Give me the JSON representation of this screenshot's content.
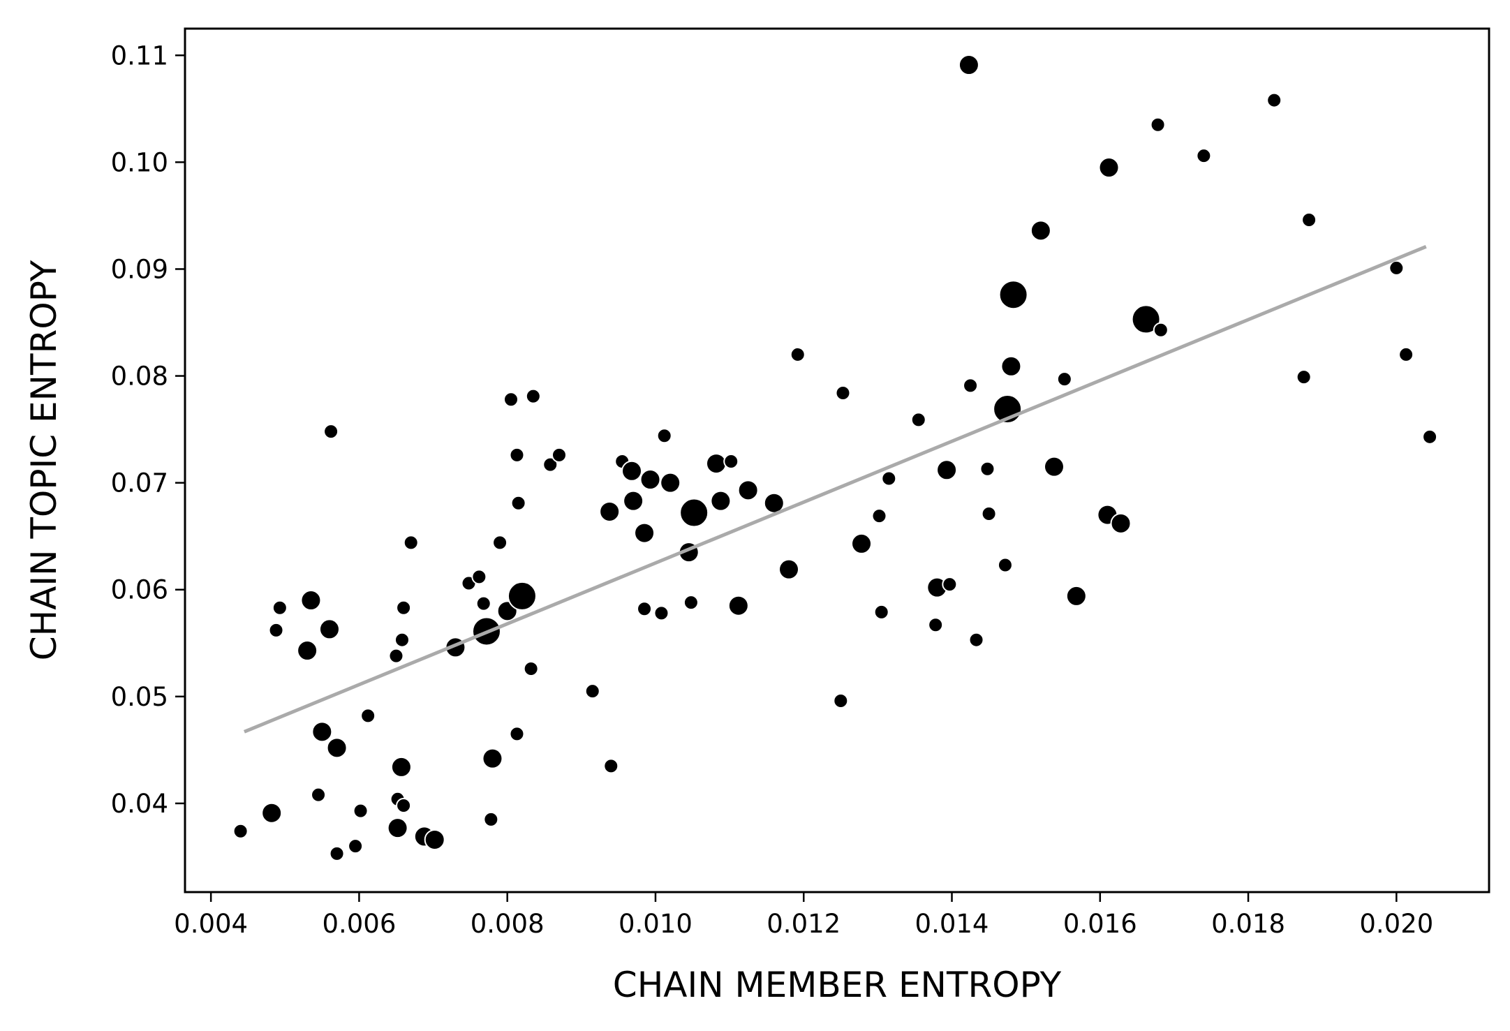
{
  "chart_data": {
    "type": "scatter",
    "xlabel": "CHAIN MEMBER ENTROPY",
    "ylabel": "CHAIN TOPIC ENTROPY",
    "xlim": [
      0.00365,
      0.02125
    ],
    "ylim": [
      0.0317,
      0.1125
    ],
    "x_ticks": [
      "0.004",
      "0.006",
      "0.008",
      "0.010",
      "0.012",
      "0.014",
      "0.016",
      "0.018",
      "0.020"
    ],
    "y_ticks": [
      "0.04",
      "0.05",
      "0.06",
      "0.07",
      "0.08",
      "0.09",
      "0.10",
      "0.11"
    ],
    "grid": false,
    "marker_color": "#000000",
    "trend_line": {
      "x": [
        0.00445,
        0.0204
      ],
      "y": [
        0.0467,
        0.0921
      ],
      "color": "#aaaaaa"
    },
    "points": [
      [
        0.0044,
        0.0374,
        1
      ],
      [
        0.00482,
        0.0391,
        2
      ],
      [
        0.00488,
        0.0562,
        1
      ],
      [
        0.00493,
        0.0583,
        1
      ],
      [
        0.0053,
        0.0543,
        2
      ],
      [
        0.00535,
        0.059,
        2
      ],
      [
        0.00545,
        0.0408,
        1
      ],
      [
        0.0055,
        0.0467,
        2
      ],
      [
        0.0056,
        0.0563,
        2
      ],
      [
        0.00562,
        0.0748,
        1
      ],
      [
        0.0057,
        0.0452,
        2
      ],
      [
        0.0057,
        0.0353,
        1
      ],
      [
        0.00595,
        0.036,
        1
      ],
      [
        0.00602,
        0.0393,
        1
      ],
      [
        0.00612,
        0.0482,
        1
      ],
      [
        0.0065,
        0.0538,
        1
      ],
      [
        0.00652,
        0.0404,
        1
      ],
      [
        0.00652,
        0.0377,
        2
      ],
      [
        0.00657,
        0.0434,
        2
      ],
      [
        0.00658,
        0.0553,
        1
      ],
      [
        0.0066,
        0.0583,
        1
      ],
      [
        0.0066,
        0.0398,
        1
      ],
      [
        0.0067,
        0.0644,
        1
      ],
      [
        0.00688,
        0.0369,
        2
      ],
      [
        0.00702,
        0.0366,
        2
      ],
      [
        0.0073,
        0.0546,
        2
      ],
      [
        0.00748,
        0.0606,
        1
      ],
      [
        0.00762,
        0.0612,
        1
      ],
      [
        0.00768,
        0.0587,
        1
      ],
      [
        0.00772,
        0.0561,
        3
      ],
      [
        0.00778,
        0.0385,
        1
      ],
      [
        0.0078,
        0.0442,
        2
      ],
      [
        0.0079,
        0.0644,
        1
      ],
      [
        0.008,
        0.058,
        2
      ],
      [
        0.00805,
        0.0778,
        1
      ],
      [
        0.00813,
        0.0465,
        1
      ],
      [
        0.00813,
        0.0726,
        1
      ],
      [
        0.00815,
        0.0681,
        1
      ],
      [
        0.0082,
        0.0594,
        3
      ],
      [
        0.00832,
        0.0526,
        1
      ],
      [
        0.00835,
        0.0781,
        1
      ],
      [
        0.00858,
        0.0717,
        1
      ],
      [
        0.0087,
        0.0726,
        1
      ],
      [
        0.00915,
        0.0505,
        1
      ],
      [
        0.00938,
        0.0673,
        2
      ],
      [
        0.0094,
        0.0435,
        1
      ],
      [
        0.00955,
        0.072,
        1
      ],
      [
        0.00968,
        0.0711,
        2
      ],
      [
        0.0097,
        0.0683,
        2
      ],
      [
        0.00985,
        0.0653,
        2
      ],
      [
        0.00985,
        0.0582,
        1
      ],
      [
        0.00993,
        0.0703,
        2
      ],
      [
        0.01008,
        0.0578,
        1
      ],
      [
        0.01012,
        0.0744,
        1
      ],
      [
        0.0102,
        0.07,
        2
      ],
      [
        0.01045,
        0.0635,
        2
      ],
      [
        0.01048,
        0.0588,
        1
      ],
      [
        0.01052,
        0.0672,
        3
      ],
      [
        0.01082,
        0.0718,
        2
      ],
      [
        0.01088,
        0.0683,
        2
      ],
      [
        0.01102,
        0.072,
        1
      ],
      [
        0.01112,
        0.0585,
        2
      ],
      [
        0.01125,
        0.0693,
        2
      ],
      [
        0.0116,
        0.0681,
        2
      ],
      [
        0.0118,
        0.0619,
        2
      ],
      [
        0.01192,
        0.082,
        1
      ],
      [
        0.0125,
        0.0496,
        1
      ],
      [
        0.01253,
        0.0784,
        1
      ],
      [
        0.01278,
        0.0643,
        2
      ],
      [
        0.01302,
        0.0669,
        1
      ],
      [
        0.01305,
        0.0579,
        1
      ],
      [
        0.01315,
        0.0704,
        1
      ],
      [
        0.01355,
        0.0759,
        1
      ],
      [
        0.01378,
        0.0567,
        1
      ],
      [
        0.0138,
        0.0602,
        2
      ],
      [
        0.01393,
        0.0712,
        2
      ],
      [
        0.01397,
        0.0605,
        1
      ],
      [
        0.01423,
        0.1091,
        2
      ],
      [
        0.01425,
        0.0791,
        1
      ],
      [
        0.01433,
        0.0553,
        1
      ],
      [
        0.01448,
        0.0713,
        1
      ],
      [
        0.0145,
        0.0671,
        1
      ],
      [
        0.01472,
        0.0623,
        1
      ],
      [
        0.01475,
        0.0769,
        3
      ],
      [
        0.0148,
        0.0809,
        2
      ],
      [
        0.01483,
        0.0876,
        3
      ],
      [
        0.0152,
        0.0936,
        2
      ],
      [
        0.01538,
        0.0715,
        2
      ],
      [
        0.01552,
        0.0797,
        1
      ],
      [
        0.01568,
        0.0594,
        2
      ],
      [
        0.0161,
        0.067,
        2
      ],
      [
        0.01612,
        0.0995,
        2
      ],
      [
        0.01628,
        0.0662,
        2
      ],
      [
        0.01662,
        0.0853,
        3
      ],
      [
        0.01678,
        0.1035,
        1
      ],
      [
        0.01682,
        0.0843,
        1
      ],
      [
        0.0174,
        0.1006,
        1
      ],
      [
        0.01835,
        0.1058,
        1
      ],
      [
        0.01875,
        0.0799,
        1
      ],
      [
        0.01882,
        0.0946,
        1
      ],
      [
        0.02,
        0.0901,
        1
      ],
      [
        0.02013,
        0.082,
        1
      ],
      [
        0.02045,
        0.0743,
        1
      ]
    ]
  }
}
